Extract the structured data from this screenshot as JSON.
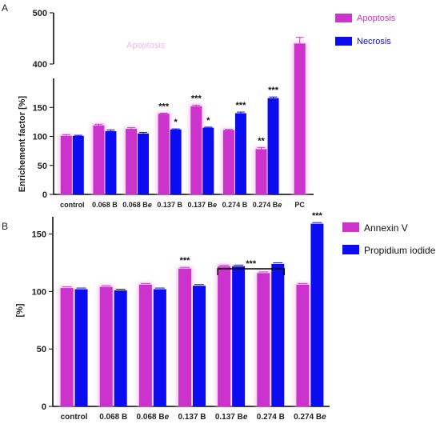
{
  "colors": {
    "apoptosis": "#cc33cc",
    "apoptosis_glow": "#f6c6f1",
    "necrosis": "#0c0cf0",
    "axis": "#000000",
    "text": "#222222"
  },
  "chart_data": [
    {
      "type": "bar",
      "panel_label": "A",
      "ylabel": "Enrichement factor [%]",
      "y_axis": "broken",
      "y_segments": [
        {
          "range": [
            0,
            200
          ],
          "ticks": [
            0,
            50,
            100,
            150
          ]
        },
        {
          "range": [
            400,
            500
          ],
          "ticks": [
            400,
            500
          ]
        }
      ],
      "categories": [
        "control",
        "0.068 B",
        "0.068 Be",
        "0.137 B",
        "0.137 Be",
        "0.274 B",
        "0.274 Be",
        "PC"
      ],
      "series": [
        {
          "name": "Apoptosis",
          "color": "#cc33cc",
          "values": [
            101,
            119,
            113,
            139,
            152,
            111,
            78,
            440
          ],
          "errors": [
            2,
            2,
            2,
            1,
            2,
            1,
            3,
            12
          ]
        },
        {
          "name": "Necrosis",
          "color": "#0c0cf0",
          "values": [
            101,
            109,
            105,
            112,
            115,
            140,
            166,
            null
          ],
          "errors": [
            1,
            2,
            2,
            1,
            1,
            2,
            2,
            0
          ]
        }
      ],
      "annotations": [
        {
          "category": "0.137 B",
          "series": "Apoptosis",
          "text": "***"
        },
        {
          "category": "0.137 B",
          "series": "Necrosis",
          "text": "*"
        },
        {
          "category": "0.137 Be",
          "series": "Apoptosis",
          "text": "***"
        },
        {
          "category": "0.137 Be",
          "series": "Necrosis",
          "text": "*"
        },
        {
          "category": "0.274 B",
          "series": "Necrosis",
          "text": "***"
        },
        {
          "category": "0.274 Be",
          "series": "Apoptosis",
          "text": "**"
        },
        {
          "category": "0.274 Be",
          "series": "Necrosis",
          "text": "***"
        }
      ],
      "legend": {
        "placement": "top-right",
        "entries": [
          "Apoptosis",
          "Necrosis"
        ]
      },
      "ghost_text": "Apoptosis"
    },
    {
      "type": "bar",
      "panel_label": "B",
      "ylabel": "[%]",
      "ylim": [
        0,
        165
      ],
      "ticks": [
        0,
        50,
        100,
        150
      ],
      "categories": [
        "control",
        "0.068 B",
        "0.068 Be",
        "0.137 B",
        "0.137 Be",
        "0.274 B",
        "0.274 Be"
      ],
      "series": [
        {
          "name": "Annexin V",
          "color": "#cc33cc",
          "values": [
            103,
            104,
            106,
            120,
            122,
            116,
            106
          ],
          "errors": [
            1,
            1,
            1,
            1,
            1,
            1,
            1
          ]
        },
        {
          "name": "Propidium iodide",
          "color": "#0c0cf0",
          "values": [
            102,
            101,
            102,
            105,
            122,
            124,
            159
          ],
          "errors": [
            1,
            1,
            1,
            1,
            1,
            1,
            1
          ]
        }
      ],
      "annotations": [
        {
          "category": "0.137 B",
          "series": "Annexin V",
          "text": "***"
        },
        {
          "category": "0.274 Be",
          "series": "Propidium iodide",
          "text": "***"
        },
        {
          "bracket": [
            "0.137 Be",
            "0.274 B"
          ],
          "text": "***"
        }
      ],
      "legend": {
        "placement": "top-right",
        "entries": [
          "Annexin V",
          "Propidium iodide"
        ]
      }
    }
  ]
}
